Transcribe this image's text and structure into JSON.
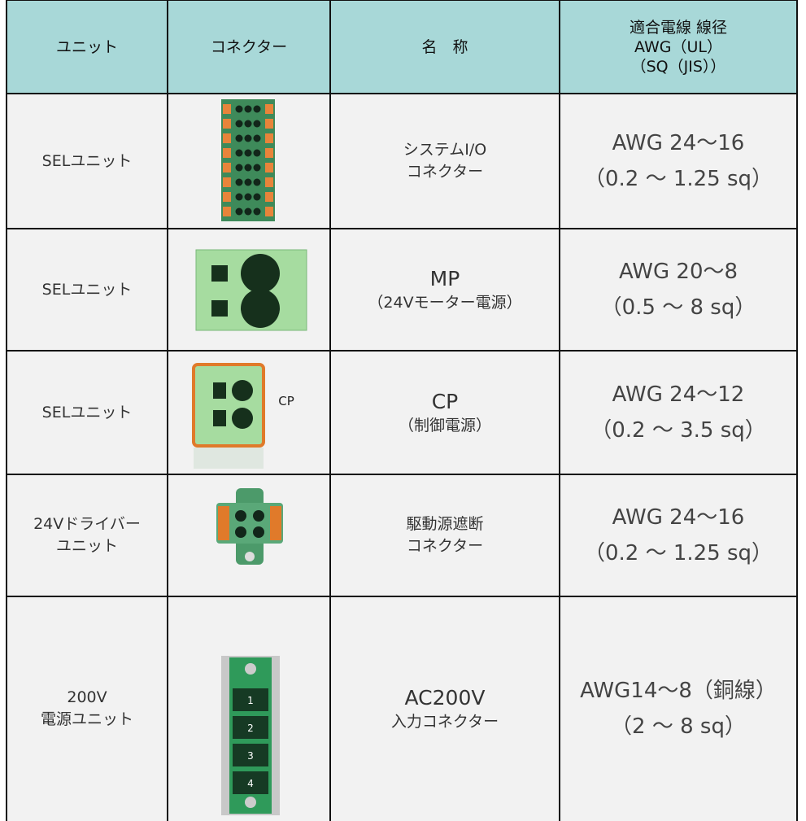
{
  "table": {
    "header": [
      "ユニット",
      "コネクター",
      "名　称",
      [
        "適合電線 線径",
        "AWG（UL）",
        "（SQ（JIS））"
      ]
    ],
    "rows": [
      {
        "unit": [
          "SELユニット"
        ],
        "name": [
          "システムI/O",
          "コネクター"
        ],
        "wire": [
          "AWG 24～16",
          "（0.2 ～ 1.25 sq）"
        ]
      },
      {
        "unit": [
          "SELユニット"
        ],
        "name": [
          "MP",
          "（24Vモーター電源）"
        ],
        "wire": [
          "AWG 20～8",
          "（0.5 ～ 8 sq）"
        ]
      },
      {
        "unit": [
          "SELユニット"
        ],
        "connector_label": "CP",
        "name": [
          "CP",
          "（制御電源）"
        ],
        "wire": [
          "AWG 24～12",
          "（0.2 ～ 3.5 sq）"
        ]
      },
      {
        "unit": [
          "24Vドライバー",
          "ユニット"
        ],
        "name": [
          "駆動源遮断",
          "コネクター"
        ],
        "wire": [
          "AWG 24～16",
          "（0.2 ～ 1.25 sq）"
        ]
      },
      {
        "unit": [
          "200V",
          "電源ユニット"
        ],
        "connector_terminals": [
          "1",
          "2",
          "3",
          "4"
        ],
        "name": [
          "AC200V",
          "入力コネクター"
        ],
        "wire": [
          "AWG14～8（銅線）",
          "（2 ～ 8 sq）"
        ]
      }
    ]
  }
}
